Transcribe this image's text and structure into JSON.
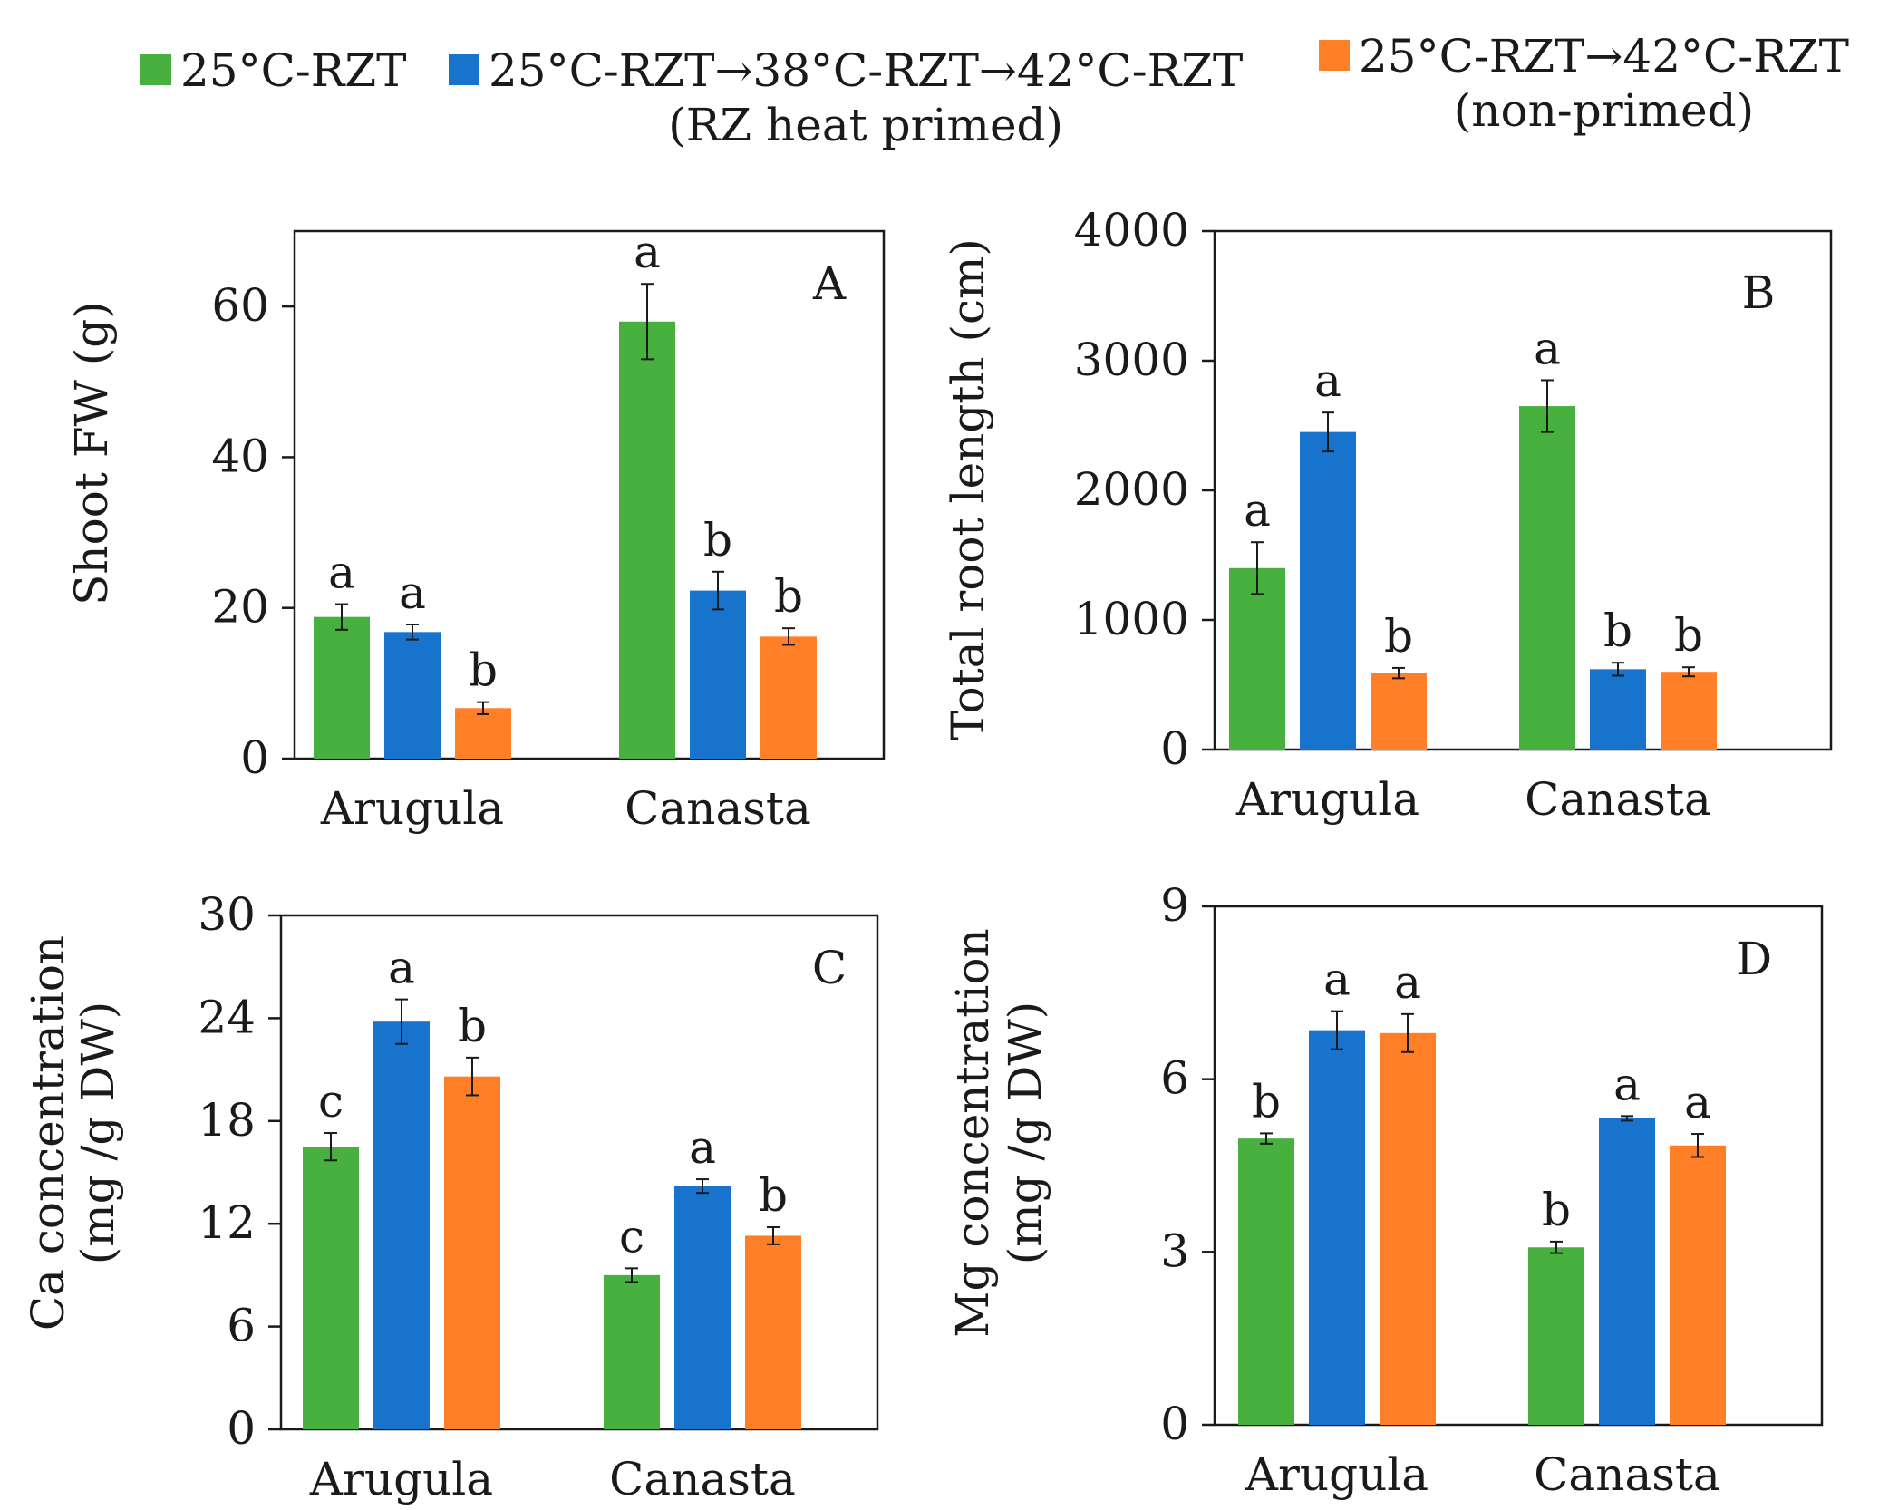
{
  "legend": [
    {
      "label_line1": "25°C-RZT",
      "label_line2": "",
      "color": "#48B03F"
    },
    {
      "label_line1": "25°C-RZT→38°C-RZT→42°C-RZT",
      "label_line2": "(RZ heat primed)",
      "color": "#1873CC"
    },
    {
      "label_line1": "25°C-RZT→42°C-RZT",
      "label_line2": "(non-primed)",
      "color": "#FF7F27"
    }
  ],
  "chart_data": [
    {
      "type": "bar",
      "panel": "A",
      "ylabel": "Shoot FW (g)",
      "categories": [
        "Arugula",
        "Canasta"
      ],
      "ylim": [
        0,
        70
      ],
      "yticks": [
        0,
        20,
        40,
        60
      ],
      "series": [
        {
          "name": "25°C-RZT",
          "values": [
            18.8,
            58
          ],
          "errors": [
            1.7,
            5
          ],
          "letters": [
            "a",
            "a"
          ]
        },
        {
          "name": "25°C-RZT→38°C-RZT→42°C-RZT (RZ heat primed)",
          "values": [
            16.8,
            22.3
          ],
          "errors": [
            1,
            2.5
          ],
          "letters": [
            "a",
            "b"
          ]
        },
        {
          "name": "25°C-RZT→42°C-RZT (non-primed)",
          "values": [
            6.7,
            16.2
          ],
          "errors": [
            0.8,
            1.1
          ],
          "letters": [
            "b",
            "b"
          ]
        }
      ]
    },
    {
      "type": "bar",
      "panel": "B",
      "ylabel": "Total root length (cm)",
      "categories": [
        "Arugula",
        "Canasta"
      ],
      "ylim": [
        0,
        4000
      ],
      "yticks": [
        0,
        1000,
        2000,
        3000,
        4000
      ],
      "series": [
        {
          "name": "25°C-RZT",
          "values": [
            1400,
            2650
          ],
          "errors": [
            200,
            200
          ],
          "letters": [
            "a",
            "a"
          ]
        },
        {
          "name": "25°C-RZT→38°C-RZT→42°C-RZT (RZ heat primed)",
          "values": [
            2450,
            620
          ],
          "errors": [
            150,
            50
          ],
          "letters": [
            "a",
            "b"
          ]
        },
        {
          "name": "25°C-RZT→42°C-RZT (non-primed)",
          "values": [
            590,
            600
          ],
          "errors": [
            40,
            35
          ],
          "letters": [
            "b",
            "b"
          ]
        }
      ]
    },
    {
      "type": "bar",
      "panel": "C",
      "ylabel_line1": "Ca concentration",
      "ylabel_line2": "(mg /g DW)",
      "categories": [
        "Arugula",
        "Canasta"
      ],
      "ylim": [
        0,
        30
      ],
      "yticks": [
        0,
        6,
        12,
        18,
        24,
        30
      ],
      "series": [
        {
          "name": "25°C-RZT",
          "values": [
            16.5,
            9
          ],
          "errors": [
            0.8,
            0.4
          ],
          "letters": [
            "c",
            "c"
          ]
        },
        {
          "name": "25°C-RZT→38°C-RZT→42°C-RZT (RZ heat primed)",
          "values": [
            23.8,
            14.2
          ],
          "errors": [
            1.3,
            0.4
          ],
          "letters": [
            "a",
            "a"
          ]
        },
        {
          "name": "25°C-RZT→42°C-RZT (non-primed)",
          "values": [
            20.6,
            11.3
          ],
          "errors": [
            1.1,
            0.5
          ],
          "letters": [
            "b",
            "b"
          ]
        }
      ]
    },
    {
      "type": "bar",
      "panel": "D",
      "ylabel_line1": "Mg concentration",
      "ylabel_line2": "(mg /g DW)",
      "categories": [
        "Arugula",
        "Canasta"
      ],
      "ylim": [
        0,
        9
      ],
      "yticks": [
        0,
        3,
        6,
        9
      ],
      "series": [
        {
          "name": "25°C-RZT",
          "values": [
            4.97,
            3.08
          ],
          "errors": [
            0.09,
            0.1
          ],
          "letters": [
            "b",
            "b"
          ]
        },
        {
          "name": "25°C-RZT→38°C-RZT→42°C-RZT (RZ heat primed)",
          "values": [
            6.85,
            5.32
          ],
          "errors": [
            0.33,
            0.04
          ],
          "letters": [
            "a",
            "a"
          ]
        },
        {
          "name": "25°C-RZT→42°C-RZT (non-primed)",
          "values": [
            6.8,
            4.85
          ],
          "errors": [
            0.33,
            0.2
          ],
          "letters": [
            "a",
            "a"
          ]
        }
      ]
    }
  ]
}
